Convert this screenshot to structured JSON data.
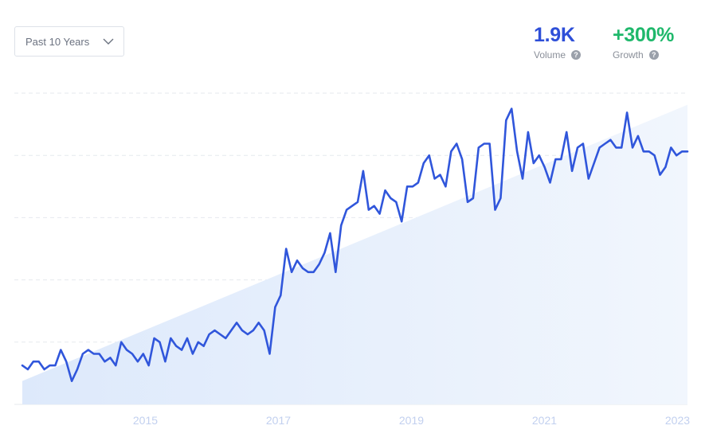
{
  "filter": {
    "selected": "Past 10 Years",
    "icon": "chevron-down-icon"
  },
  "metrics": {
    "volume": {
      "value": "1.9K",
      "label": "Volume",
      "color": "#2e4fd8"
    },
    "growth": {
      "value": "+300%",
      "label": "Growth",
      "color": "#1fb86b"
    }
  },
  "help_glyph": "?",
  "chart_data": {
    "type": "line",
    "title": "",
    "xlabel": "",
    "ylabel": "",
    "x_range": [
      2013.15,
      2023.15
    ],
    "x_ticks": [
      "2015",
      "2017",
      "2019",
      "2021",
      "2023"
    ],
    "grid": "horizontal-dashed",
    "line_color": "#3056db",
    "series": [
      {
        "values": [
          10,
          9,
          11,
          11,
          9,
          10,
          10,
          14,
          11,
          6,
          9,
          13,
          14,
          13,
          13,
          11,
          12,
          10,
          16,
          14,
          13,
          11,
          13,
          10,
          17,
          16,
          11,
          17,
          15,
          14,
          17,
          13,
          16,
          15,
          18,
          19,
          18,
          17,
          19,
          21,
          19,
          18,
          19,
          21,
          19,
          13,
          25,
          28,
          40,
          34,
          37,
          35,
          34,
          34,
          36,
          39,
          44,
          34,
          46,
          50,
          51,
          52,
          60,
          50,
          51,
          49,
          55,
          53,
          52,
          47,
          56,
          56,
          57,
          62,
          64,
          58,
          59,
          56,
          65,
          67,
          63,
          52,
          53,
          66,
          67,
          67,
          50,
          53,
          73,
          76,
          65,
          58,
          70,
          62,
          64,
          61,
          57,
          63,
          63,
          70,
          60,
          66,
          67,
          58,
          62,
          66,
          67,
          68,
          66,
          66,
          75,
          66,
          69,
          65,
          65,
          64,
          59,
          61,
          66,
          64,
          65,
          65
        ]
      },
      {
        "name": "trend",
        "values": [
          6,
          77
        ]
      }
    ],
    "ylim": [
      0,
      80
    ]
  }
}
